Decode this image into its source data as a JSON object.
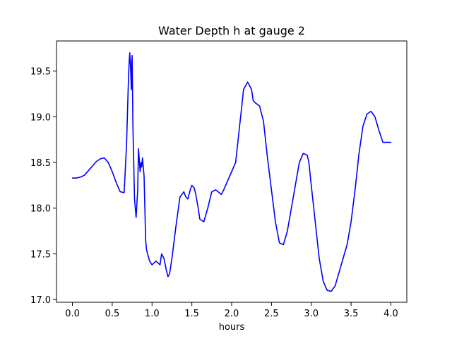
{
  "chart_data": {
    "type": "line",
    "title": "Water Depth h at gauge 2",
    "xlabel": "hours",
    "ylabel": "",
    "xlim": [
      -0.2,
      4.2
    ],
    "ylim": [
      16.97,
      19.83
    ],
    "xticks": [
      0.0,
      0.5,
      1.0,
      1.5,
      2.0,
      2.5,
      3.0,
      3.5,
      4.0
    ],
    "xtick_labels": [
      "0.0",
      "0.5",
      "1.0",
      "1.5",
      "2.0",
      "2.5",
      "3.0",
      "3.5",
      "4.0"
    ],
    "yticks": [
      17.0,
      17.5,
      18.0,
      18.5,
      19.0,
      19.5
    ],
    "ytick_labels": [
      "17.0",
      "17.5",
      "18.0",
      "18.5",
      "19.0",
      "19.5"
    ],
    "grid": false,
    "series": [
      {
        "color": "#0000ff",
        "x": [
          0.0,
          0.05,
          0.1,
          0.15,
          0.2,
          0.25,
          0.3,
          0.35,
          0.4,
          0.45,
          0.5,
          0.55,
          0.6,
          0.65,
          0.68,
          0.7,
          0.71,
          0.72,
          0.73,
          0.74,
          0.745,
          0.75,
          0.76,
          0.77,
          0.78,
          0.8,
          0.82,
          0.83,
          0.85,
          0.86,
          0.87,
          0.88,
          0.9,
          0.91,
          0.92,
          0.93,
          0.95,
          0.97,
          1.0,
          1.05,
          1.1,
          1.12,
          1.15,
          1.18,
          1.2,
          1.22,
          1.25,
          1.3,
          1.35,
          1.4,
          1.42,
          1.45,
          1.48,
          1.5,
          1.53,
          1.55,
          1.58,
          1.6,
          1.65,
          1.7,
          1.75,
          1.8,
          1.83,
          1.87,
          1.9,
          1.95,
          2.0,
          2.05,
          2.1,
          2.15,
          2.2,
          2.25,
          2.27,
          2.3,
          2.35,
          2.4,
          2.45,
          2.5,
          2.55,
          2.6,
          2.65,
          2.7,
          2.75,
          2.8,
          2.85,
          2.9,
          2.95,
          2.97,
          3.0,
          3.05,
          3.1,
          3.15,
          3.2,
          3.25,
          3.3,
          3.35,
          3.4,
          3.45,
          3.5,
          3.55,
          3.6,
          3.65,
          3.7,
          3.75,
          3.8,
          3.85,
          3.9,
          3.95,
          4.0
        ],
        "y": [
          18.33,
          18.33,
          18.34,
          18.36,
          18.41,
          18.46,
          18.51,
          18.54,
          18.55,
          18.5,
          18.4,
          18.28,
          18.18,
          18.17,
          18.7,
          19.3,
          19.55,
          19.7,
          19.55,
          19.3,
          19.6,
          19.67,
          18.9,
          18.5,
          18.1,
          17.9,
          18.2,
          18.65,
          18.4,
          18.5,
          18.45,
          18.55,
          18.35,
          18.0,
          17.65,
          17.55,
          17.48,
          17.42,
          17.38,
          17.42,
          17.38,
          17.5,
          17.45,
          17.32,
          17.25,
          17.28,
          17.45,
          17.8,
          18.12,
          18.18,
          18.13,
          18.1,
          18.2,
          18.25,
          18.22,
          18.15,
          18.0,
          17.88,
          17.85,
          18.0,
          18.18,
          18.2,
          18.18,
          18.15,
          18.2,
          18.3,
          18.4,
          18.5,
          18.9,
          19.3,
          19.38,
          19.3,
          19.18,
          19.15,
          19.12,
          18.95,
          18.55,
          18.2,
          17.85,
          17.62,
          17.6,
          17.75,
          18.0,
          18.25,
          18.5,
          18.6,
          18.58,
          18.5,
          18.25,
          17.85,
          17.45,
          17.2,
          17.1,
          17.09,
          17.15,
          17.3,
          17.45,
          17.6,
          17.85,
          18.2,
          18.6,
          18.9,
          19.03,
          19.06,
          19.0,
          18.85,
          18.72,
          18.72,
          18.72
        ]
      }
    ]
  }
}
